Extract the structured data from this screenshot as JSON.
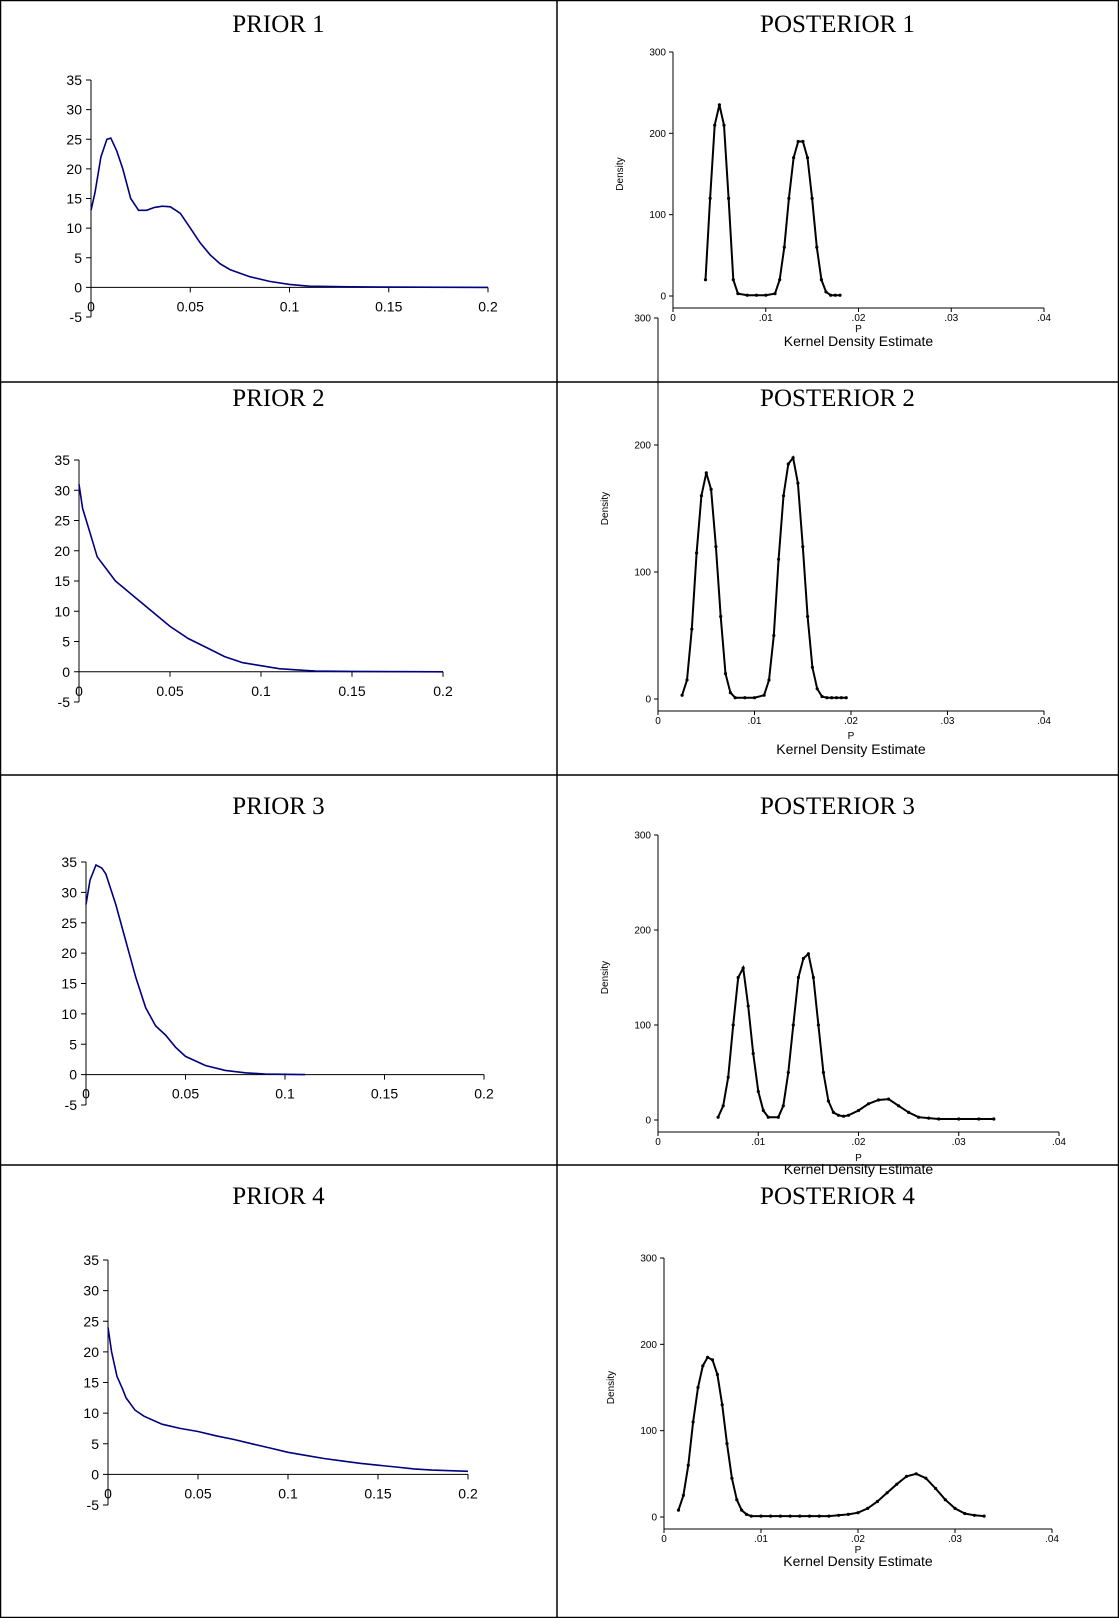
{
  "chart_data": [
    {
      "type": "line",
      "title": "PRIOR 1",
      "xlabel": "",
      "ylabel": "",
      "xlim": [
        0,
        0.2
      ],
      "ylim": [
        -5,
        35
      ],
      "x_ticks": [
        "0",
        "0.05",
        "0.1",
        "0.15",
        "0.2"
      ],
      "y_ticks": [
        "-5",
        "0",
        "5",
        "10",
        "15",
        "20",
        "25",
        "30",
        "35"
      ],
      "line_color": "#000080",
      "series": [
        {
          "x": [
            0,
            0.002,
            0.005,
            0.008,
            0.01,
            0.013,
            0.016,
            0.02,
            0.024,
            0.028,
            0.032,
            0.036,
            0.04,
            0.045,
            0.05,
            0.055,
            0.06,
            0.065,
            0.07,
            0.08,
            0.09,
            0.1,
            0.11,
            0.13,
            0.15,
            0.2
          ],
          "y": [
            13,
            16,
            22,
            25,
            25.2,
            23,
            20,
            15,
            13,
            13,
            13.5,
            13.7,
            13.6,
            12.5,
            10,
            7.5,
            5.5,
            4,
            3,
            1.8,
            1,
            0.5,
            0.2,
            0.1,
            0.05,
            0
          ]
        }
      ]
    },
    {
      "type": "line",
      "title": "POSTERIOR 1",
      "xlabel": "P",
      "ylabel": "Density",
      "caption": "Kernel Density Estimate",
      "xlim": [
        0,
        0.04
      ],
      "ylim": [
        0,
        300
      ],
      "x_ticks": [
        "0",
        ".01",
        ".02",
        ".03",
        ".04"
      ],
      "y_ticks": [
        "0",
        "100",
        "200",
        "300"
      ],
      "line_color": "#000000",
      "series": [
        {
          "x": [
            0.0035,
            0.004,
            0.0045,
            0.005,
            0.0055,
            0.006,
            0.0065,
            0.007,
            0.008,
            0.009,
            0.01,
            0.011,
            0.0115,
            0.012,
            0.0125,
            0.013,
            0.0135,
            0.014,
            0.0145,
            0.015,
            0.0155,
            0.016,
            0.0165,
            0.017,
            0.0175,
            0.018
          ],
          "y": [
            20,
            120,
            210,
            235,
            210,
            120,
            20,
            3,
            1,
            1,
            1,
            3,
            20,
            60,
            120,
            170,
            190,
            190,
            170,
            120,
            60,
            20,
            5,
            1,
            1,
            1
          ]
        }
      ]
    },
    {
      "type": "line",
      "title": "PRIOR 2",
      "xlabel": "",
      "ylabel": "",
      "xlim": [
        0,
        0.2
      ],
      "ylim": [
        -5,
        35
      ],
      "x_ticks": [
        "0",
        "0.05",
        "0.1",
        "0.15",
        "0.2"
      ],
      "y_ticks": [
        "-5",
        "0",
        "5",
        "10",
        "15",
        "20",
        "25",
        "30",
        "35"
      ],
      "line_color": "#000080",
      "series": [
        {
          "x": [
            0,
            0.002,
            0.005,
            0.008,
            0.01,
            0.015,
            0.02,
            0.03,
            0.04,
            0.05,
            0.06,
            0.07,
            0.08,
            0.09,
            0.1,
            0.11,
            0.12,
            0.13,
            0.15,
            0.2
          ],
          "y": [
            31,
            27,
            24,
            21,
            19,
            17,
            15,
            12.5,
            10,
            7.5,
            5.5,
            4,
            2.5,
            1.5,
            1,
            0.5,
            0.3,
            0.1,
            0.05,
            0
          ]
        }
      ]
    },
    {
      "type": "line",
      "title": "POSTERIOR 2",
      "xlabel": "P",
      "ylabel": "Density",
      "caption": "Kernel Density Estimate",
      "xlim": [
        0,
        0.04
      ],
      "ylim": [
        0,
        300
      ],
      "x_ticks": [
        "0",
        ".01",
        ".02",
        ".03",
        ".04"
      ],
      "y_ticks": [
        "0",
        "100",
        "200",
        "300"
      ],
      "line_color": "#000000",
      "series": [
        {
          "x": [
            0.0025,
            0.003,
            0.0035,
            0.004,
            0.0045,
            0.005,
            0.0055,
            0.006,
            0.0065,
            0.007,
            0.0075,
            0.008,
            0.009,
            0.01,
            0.011,
            0.0115,
            0.012,
            0.0125,
            0.013,
            0.0135,
            0.014,
            0.0145,
            0.015,
            0.0155,
            0.016,
            0.0165,
            0.017,
            0.0175,
            0.018,
            0.0185,
            0.019,
            0.0195
          ],
          "y": [
            3,
            15,
            55,
            115,
            160,
            178,
            165,
            120,
            65,
            20,
            5,
            1,
            1,
            1,
            3,
            15,
            50,
            110,
            160,
            185,
            190,
            170,
            120,
            65,
            25,
            8,
            2,
            1,
            1,
            1,
            1,
            1
          ]
        }
      ]
    },
    {
      "type": "line",
      "title": "PRIOR 3",
      "xlabel": "",
      "ylabel": "",
      "xlim": [
        0,
        0.2
      ],
      "ylim": [
        -5,
        35
      ],
      "x_ticks": [
        "0",
        "0.05",
        "0.1",
        "0.15",
        "0.2"
      ],
      "y_ticks": [
        "-5",
        "0",
        "5",
        "10",
        "15",
        "20",
        "25",
        "30",
        "35"
      ],
      "line_color": "#000080",
      "series": [
        {
          "x": [
            0,
            0.002,
            0.005,
            0.008,
            0.01,
            0.015,
            0.02,
            0.025,
            0.03,
            0.035,
            0.04,
            0.045,
            0.05,
            0.06,
            0.07,
            0.08,
            0.09,
            0.1,
            0.11
          ],
          "y": [
            28,
            32,
            34.5,
            34,
            33,
            28,
            22,
            16,
            11,
            8,
            6.5,
            4.5,
            3,
            1.5,
            0.7,
            0.3,
            0.1,
            0.05,
            0
          ]
        }
      ]
    },
    {
      "type": "line",
      "title": "POSTERIOR 3",
      "xlabel": "P",
      "ylabel": "Density",
      "caption": "Kernel Density Estimate",
      "xlim": [
        0,
        0.04
      ],
      "ylim": [
        0,
        300
      ],
      "x_ticks": [
        "0",
        ".01",
        ".02",
        ".03",
        ".04"
      ],
      "y_ticks": [
        "0",
        "100",
        "200",
        "300"
      ],
      "line_color": "#000000",
      "series": [
        {
          "x": [
            0.006,
            0.0065,
            0.007,
            0.0075,
            0.008,
            0.0085,
            0.009,
            0.0095,
            0.01,
            0.0105,
            0.011,
            0.012,
            0.0125,
            0.013,
            0.0135,
            0.014,
            0.0145,
            0.015,
            0.0155,
            0.016,
            0.0165,
            0.017,
            0.0175,
            0.018,
            0.0185,
            0.019,
            0.02,
            0.021,
            0.022,
            0.023,
            0.024,
            0.025,
            0.026,
            0.027,
            0.028,
            0.03,
            0.032,
            0.0335
          ],
          "y": [
            3,
            15,
            45,
            100,
            150,
            160,
            120,
            70,
            30,
            10,
            3,
            3,
            15,
            50,
            100,
            150,
            170,
            175,
            150,
            100,
            50,
            20,
            8,
            5,
            4,
            5,
            10,
            17,
            21,
            22,
            15,
            8,
            3,
            2,
            1,
            1,
            1,
            1
          ]
        }
      ]
    },
    {
      "type": "line",
      "title": "PRIOR 4",
      "xlabel": "",
      "ylabel": "",
      "xlim": [
        0,
        0.2
      ],
      "ylim": [
        -5,
        35
      ],
      "x_ticks": [
        "0",
        "0.05",
        "0.1",
        "0.15",
        "0.2"
      ],
      "y_ticks": [
        "-5",
        "0",
        "5",
        "10",
        "15",
        "20",
        "25",
        "30",
        "35"
      ],
      "line_color": "#000080",
      "series": [
        {
          "x": [
            0,
            0.002,
            0.005,
            0.008,
            0.01,
            0.015,
            0.02,
            0.03,
            0.04,
            0.05,
            0.06,
            0.07,
            0.08,
            0.09,
            0.1,
            0.11,
            0.12,
            0.13,
            0.14,
            0.15,
            0.16,
            0.17,
            0.18,
            0.19,
            0.2
          ],
          "y": [
            24,
            20,
            16,
            14,
            12.5,
            10.5,
            9.5,
            8.2,
            7.5,
            7,
            6.3,
            5.7,
            5,
            4.3,
            3.6,
            3.1,
            2.6,
            2.2,
            1.8,
            1.5,
            1.2,
            0.9,
            0.7,
            0.6,
            0.5
          ]
        }
      ]
    },
    {
      "type": "line",
      "title": "POSTERIOR 4",
      "xlabel": "P",
      "ylabel": "Density",
      "caption": "Kernel Density Estimate",
      "xlim": [
        0,
        0.04
      ],
      "ylim": [
        0,
        300
      ],
      "x_ticks": [
        "0",
        ".01",
        ".02",
        ".03",
        ".04"
      ],
      "y_ticks": [
        "0",
        "100",
        "200",
        "300"
      ],
      "line_color": "#000000",
      "series": [
        {
          "x": [
            0.0015,
            0.002,
            0.0025,
            0.003,
            0.0035,
            0.004,
            0.0045,
            0.005,
            0.0055,
            0.006,
            0.0065,
            0.007,
            0.0075,
            0.008,
            0.0085,
            0.009,
            0.01,
            0.011,
            0.012,
            0.013,
            0.014,
            0.015,
            0.016,
            0.017,
            0.018,
            0.019,
            0.02,
            0.021,
            0.022,
            0.023,
            0.024,
            0.025,
            0.026,
            0.027,
            0.028,
            0.029,
            0.03,
            0.031,
            0.032,
            0.033
          ],
          "y": [
            8,
            25,
            60,
            110,
            150,
            175,
            185,
            182,
            165,
            130,
            85,
            45,
            20,
            8,
            3,
            1,
            1,
            1,
            1,
            1,
            1,
            1,
            1,
            1,
            2,
            3,
            5,
            10,
            18,
            28,
            38,
            47,
            50,
            45,
            33,
            20,
            10,
            4,
            2,
            1
          ]
        }
      ]
    }
  ]
}
